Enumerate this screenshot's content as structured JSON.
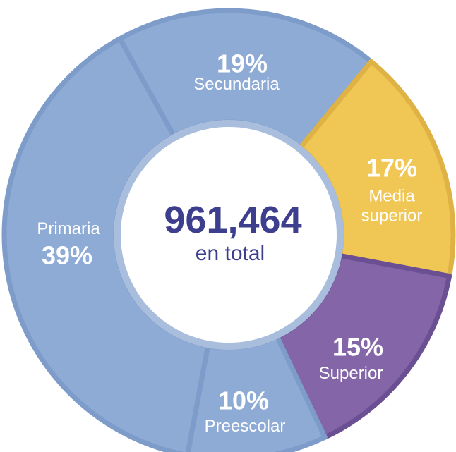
{
  "chart_data": {
    "type": "donut",
    "total": "961,464",
    "total_label": "en total",
    "series": [
      {
        "name": "Secundaria",
        "value": 19,
        "value_label": "19%",
        "color": "#8eabd6",
        "border": "#7e9cc9"
      },
      {
        "name": "Media superior",
        "value": 17,
        "value_label": "17%",
        "color": "#f0c755",
        "border": "#deb244"
      },
      {
        "name": "Superior",
        "value": 15,
        "value_label": "15%",
        "color": "#8466a8",
        "border": "#6b4f93"
      },
      {
        "name": "Preescolar",
        "value": 10,
        "value_label": "10%",
        "color": "#8eabd6",
        "border": "#7e9cc9"
      },
      {
        "name": "Primaria",
        "value": 39,
        "value_label": "39%",
        "color": "#8eabd6",
        "border": "#7e9cc9"
      }
    ]
  }
}
